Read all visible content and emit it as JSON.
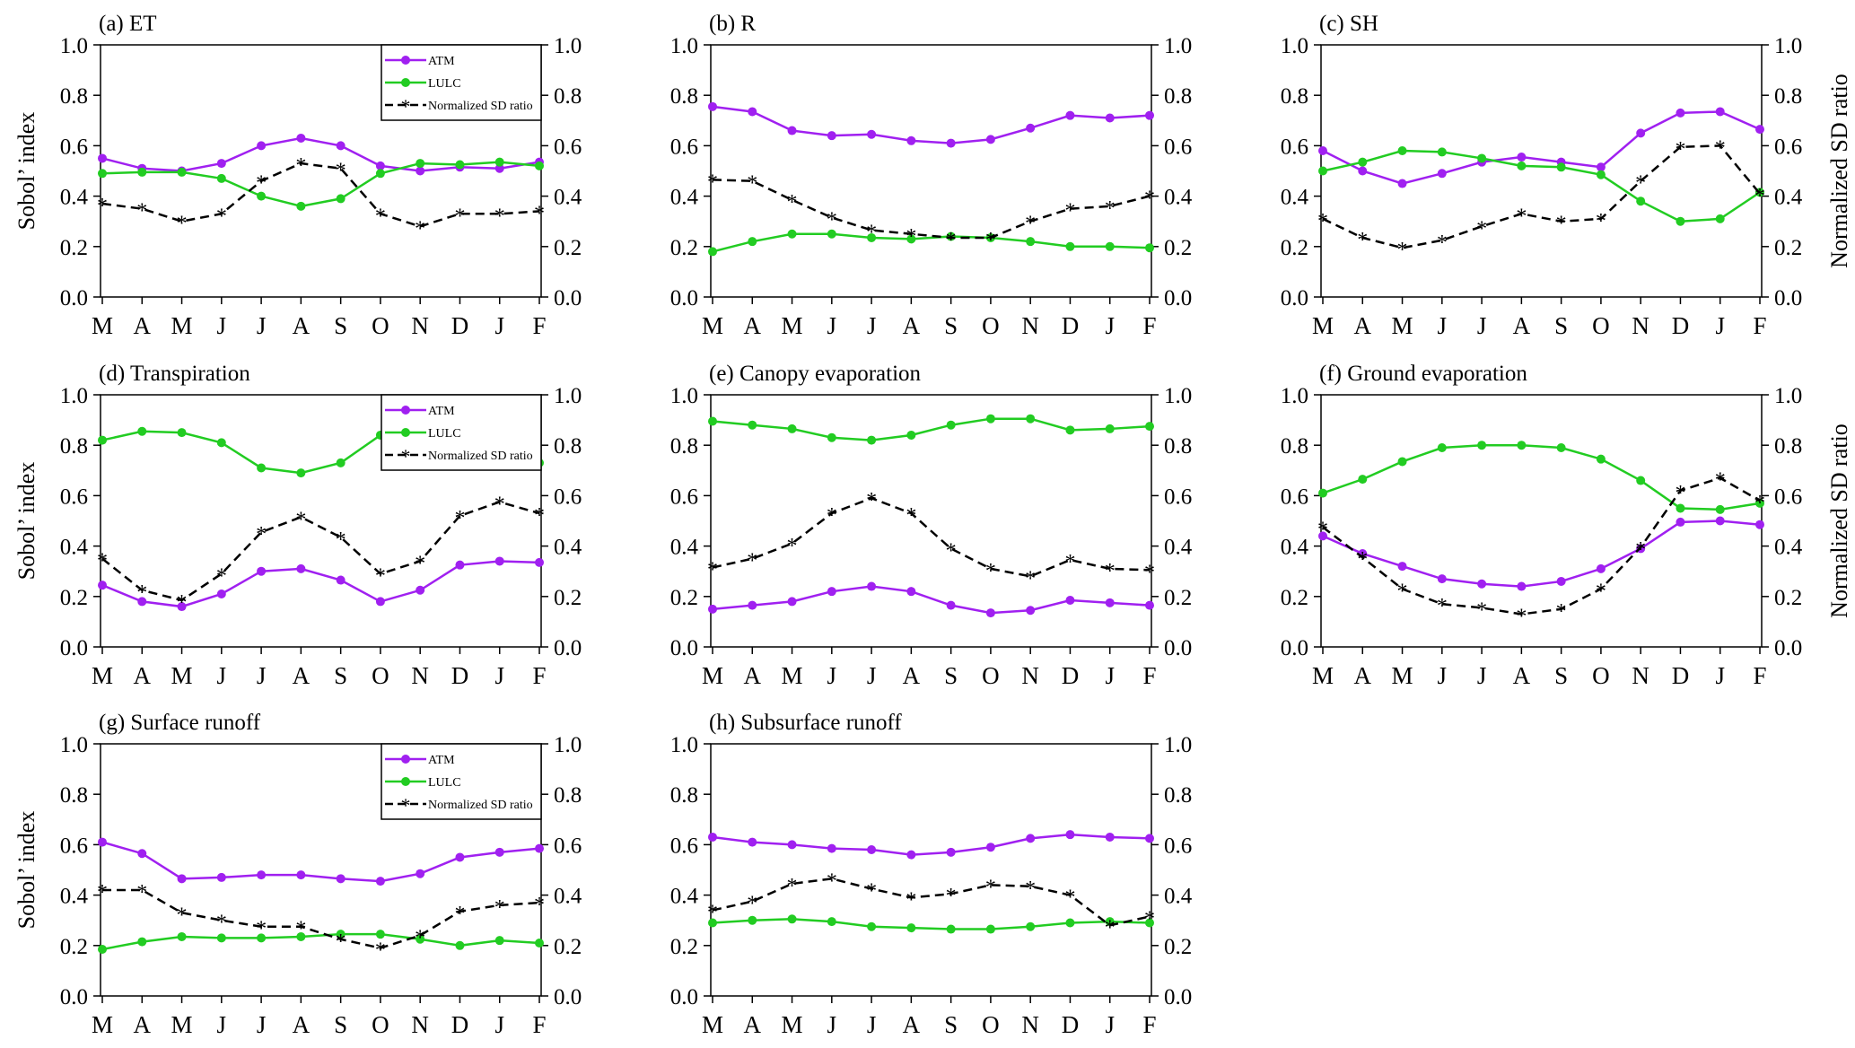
{
  "colors": {
    "atm": "#a020f0",
    "lulc": "#22cc22",
    "sd": "#000000"
  },
  "months": [
    "M",
    "A",
    "M",
    "J",
    "J",
    "A",
    "S",
    "O",
    "N",
    "D",
    "J",
    "F"
  ],
  "left_ylabel": "Sobol’ index",
  "right_ylabel": "Normalized SD ratio",
  "legend": [
    "ATM",
    "LULC",
    "Normalized SD ratio"
  ],
  "chart_data": [
    {
      "type": "line",
      "title": "(a) ET",
      "ylim": [
        0,
        1
      ],
      "y2lim": [
        0,
        1
      ],
      "yticks": [
        "0.0",
        "0.2",
        "0.4",
        "0.6",
        "0.8",
        "1.0"
      ],
      "legend": "top-right",
      "show_left_label": true,
      "show_right_label": false,
      "series": [
        {
          "name": "ATM",
          "values": [
            0.55,
            0.51,
            0.5,
            0.53,
            0.6,
            0.63,
            0.6,
            0.52,
            0.5,
            0.515,
            0.51,
            0.535
          ]
        },
        {
          "name": "LULC",
          "values": [
            0.49,
            0.495,
            0.495,
            0.47,
            0.4,
            0.36,
            0.39,
            0.49,
            0.53,
            0.525,
            0.535,
            0.52
          ]
        },
        {
          "name": "Normalized SD ratio",
          "values": [
            0.37,
            0.35,
            0.3,
            0.33,
            0.46,
            0.53,
            0.51,
            0.33,
            0.28,
            0.33,
            0.33,
            0.34
          ]
        }
      ]
    },
    {
      "type": "line",
      "title": "(b) R",
      "ylim": [
        0,
        1
      ],
      "y2lim": [
        0,
        1
      ],
      "yticks": [
        "0.0",
        "0.2",
        "0.4",
        "0.6",
        "0.8",
        "1.0"
      ],
      "legend": "none",
      "show_left_label": false,
      "show_right_label": false,
      "series": [
        {
          "name": "ATM",
          "values": [
            0.755,
            0.735,
            0.66,
            0.64,
            0.645,
            0.62,
            0.61,
            0.625,
            0.67,
            0.72,
            0.71,
            0.72
          ]
        },
        {
          "name": "LULC",
          "values": [
            0.18,
            0.22,
            0.25,
            0.25,
            0.235,
            0.23,
            0.24,
            0.235,
            0.22,
            0.2,
            0.2,
            0.195
          ]
        },
        {
          "name": "Normalized SD ratio",
          "values": [
            0.465,
            0.46,
            0.385,
            0.315,
            0.265,
            0.25,
            0.235,
            0.235,
            0.3,
            0.35,
            0.36,
            0.4
          ]
        }
      ]
    },
    {
      "type": "line",
      "title": "(c) SH",
      "ylim": [
        0,
        1
      ],
      "y2lim": [
        0,
        1
      ],
      "yticks": [
        "0.0",
        "0.2",
        "0.4",
        "0.6",
        "0.8",
        "1.0"
      ],
      "legend": "none",
      "show_left_label": false,
      "show_right_label": true,
      "series": [
        {
          "name": "ATM",
          "values": [
            0.58,
            0.5,
            0.45,
            0.49,
            0.535,
            0.555,
            0.535,
            0.515,
            0.65,
            0.73,
            0.735,
            0.665
          ]
        },
        {
          "name": "LULC",
          "values": [
            0.5,
            0.535,
            0.58,
            0.575,
            0.55,
            0.52,
            0.515,
            0.485,
            0.38,
            0.3,
            0.31,
            0.415
          ]
        },
        {
          "name": "Normalized SD ratio",
          "values": [
            0.31,
            0.235,
            0.195,
            0.225,
            0.28,
            0.33,
            0.3,
            0.31,
            0.46,
            0.595,
            0.6,
            0.41
          ]
        }
      ]
    },
    {
      "type": "line",
      "title": "(d) Transpiration",
      "ylim": [
        0,
        1
      ],
      "y2lim": [
        0,
        1
      ],
      "yticks": [
        "0.0",
        "0.2",
        "0.4",
        "0.6",
        "0.8",
        "1.0"
      ],
      "legend": "top-right",
      "show_left_label": true,
      "show_right_label": false,
      "series": [
        {
          "name": "ATM",
          "values": [
            0.245,
            0.18,
            0.16,
            0.21,
            0.3,
            0.31,
            0.265,
            0.18,
            0.225,
            0.325,
            0.34,
            0.335
          ]
        },
        {
          "name": "LULC",
          "values": [
            0.82,
            0.855,
            0.85,
            0.81,
            0.71,
            0.69,
            0.73,
            0.84,
            0.84,
            0.745,
            0.73,
            0.73
          ]
        },
        {
          "name": "Normalized SD ratio",
          "values": [
            0.35,
            0.225,
            0.185,
            0.29,
            0.455,
            0.515,
            0.435,
            0.29,
            0.34,
            0.52,
            0.575,
            0.53
          ]
        }
      ]
    },
    {
      "type": "line",
      "title": "(e) Canopy evaporation",
      "ylim": [
        0,
        1
      ],
      "y2lim": [
        0,
        1
      ],
      "yticks": [
        "0.0",
        "0.2",
        "0.4",
        "0.6",
        "0.8",
        "1.0"
      ],
      "legend": "none",
      "show_left_label": false,
      "show_right_label": false,
      "series": [
        {
          "name": "ATM",
          "values": [
            0.15,
            0.165,
            0.18,
            0.22,
            0.24,
            0.22,
            0.165,
            0.135,
            0.145,
            0.185,
            0.175,
            0.165
          ]
        },
        {
          "name": "LULC",
          "values": [
            0.895,
            0.88,
            0.865,
            0.83,
            0.82,
            0.84,
            0.88,
            0.905,
            0.905,
            0.86,
            0.865,
            0.875
          ]
        },
        {
          "name": "Normalized SD ratio",
          "values": [
            0.315,
            0.35,
            0.41,
            0.53,
            0.59,
            0.53,
            0.39,
            0.31,
            0.28,
            0.345,
            0.31,
            0.305
          ]
        }
      ]
    },
    {
      "type": "line",
      "title": "(f) Ground evaporation",
      "ylim": [
        0,
        1
      ],
      "y2lim": [
        0,
        1
      ],
      "yticks": [
        "0.0",
        "0.2",
        "0.4",
        "0.6",
        "0.8",
        "1.0"
      ],
      "legend": "none",
      "show_left_label": false,
      "show_right_label": true,
      "series": [
        {
          "name": "ATM",
          "values": [
            0.44,
            0.37,
            0.32,
            0.27,
            0.25,
            0.24,
            0.26,
            0.31,
            0.39,
            0.495,
            0.5,
            0.485
          ]
        },
        {
          "name": "LULC",
          "values": [
            0.61,
            0.665,
            0.735,
            0.79,
            0.8,
            0.8,
            0.79,
            0.745,
            0.66,
            0.55,
            0.545,
            0.57
          ]
        },
        {
          "name": "Normalized SD ratio",
          "values": [
            0.475,
            0.355,
            0.23,
            0.17,
            0.155,
            0.13,
            0.15,
            0.23,
            0.395,
            0.62,
            0.67,
            0.58
          ]
        }
      ]
    },
    {
      "type": "line",
      "title": "(g) Surface runoff",
      "ylim": [
        0,
        1
      ],
      "y2lim": [
        0,
        1
      ],
      "yticks": [
        "0.0",
        "0.2",
        "0.4",
        "0.6",
        "0.8",
        "1.0"
      ],
      "legend": "top-right",
      "show_left_label": true,
      "show_right_label": false,
      "series": [
        {
          "name": "ATM",
          "values": [
            0.61,
            0.565,
            0.465,
            0.47,
            0.48,
            0.48,
            0.465,
            0.455,
            0.485,
            0.55,
            0.57,
            0.585
          ]
        },
        {
          "name": "LULC",
          "values": [
            0.185,
            0.215,
            0.235,
            0.23,
            0.23,
            0.235,
            0.245,
            0.245,
            0.225,
            0.2,
            0.22,
            0.21
          ]
        },
        {
          "name": "Normalized SD ratio",
          "values": [
            0.42,
            0.42,
            0.33,
            0.3,
            0.275,
            0.275,
            0.225,
            0.19,
            0.24,
            0.335,
            0.36,
            0.37
          ]
        }
      ]
    },
    {
      "type": "line",
      "title": "(h) Subsurface runoff",
      "ylim": [
        0,
        1
      ],
      "y2lim": [
        0,
        1
      ],
      "yticks": [
        "0.0",
        "0.2",
        "0.4",
        "0.6",
        "0.8",
        "1.0"
      ],
      "legend": "none",
      "show_left_label": false,
      "show_right_label": false,
      "series": [
        {
          "name": "ATM",
          "values": [
            0.63,
            0.61,
            0.6,
            0.585,
            0.58,
            0.56,
            0.57,
            0.59,
            0.625,
            0.64,
            0.63,
            0.625
          ]
        },
        {
          "name": "LULC",
          "values": [
            0.29,
            0.3,
            0.305,
            0.295,
            0.275,
            0.27,
            0.265,
            0.265,
            0.275,
            0.29,
            0.295,
            0.29
          ]
        },
        {
          "name": "Normalized SD ratio",
          "values": [
            0.34,
            0.375,
            0.445,
            0.465,
            0.425,
            0.39,
            0.405,
            0.44,
            0.435,
            0.4,
            0.28,
            0.315
          ]
        }
      ]
    }
  ]
}
